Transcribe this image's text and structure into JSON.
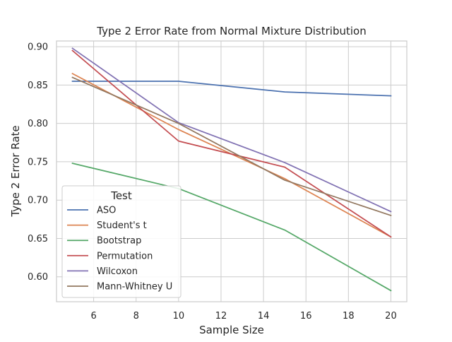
{
  "chart_data": {
    "type": "line",
    "title": "Type 2 Error Rate from Normal Mixture Distribution",
    "xlabel": "Sample Size",
    "ylabel": "Type 2 Error Rate",
    "x": [
      5,
      10,
      15,
      20
    ],
    "xlim": [
      4.25,
      20.75
    ],
    "ylim": [
      0.5675,
      0.9075
    ],
    "xticks": [
      6,
      8,
      10,
      12,
      14,
      16,
      18,
      20
    ],
    "yticks": [
      0.6,
      0.65,
      0.7,
      0.75,
      0.8,
      0.85,
      0.9
    ],
    "ytick_labels": [
      "0.60",
      "0.65",
      "0.70",
      "0.75",
      "0.80",
      "0.85",
      "0.90"
    ],
    "grid": true,
    "legend": {
      "title": "Test",
      "position": "lower-left"
    },
    "series": [
      {
        "name": "ASO",
        "color": "#4c72b0",
        "values": [
          0.855,
          0.855,
          0.841,
          0.836
        ]
      },
      {
        "name": "Student's t",
        "color": "#dd8452",
        "values": [
          0.865,
          0.792,
          0.728,
          0.652
        ]
      },
      {
        "name": "Bootstrap",
        "color": "#55a868",
        "values": [
          0.748,
          0.715,
          0.661,
          0.582
        ]
      },
      {
        "name": "Permutation",
        "color": "#c44e52",
        "values": [
          0.895,
          0.777,
          0.743,
          0.652
        ]
      },
      {
        "name": "Wilcoxon",
        "color": "#8172b3",
        "values": [
          0.898,
          0.801,
          0.749,
          0.685
        ]
      },
      {
        "name": "Mann-Whitney U",
        "color": "#937860",
        "values": [
          0.86,
          0.8,
          0.726,
          0.68
        ]
      }
    ]
  }
}
